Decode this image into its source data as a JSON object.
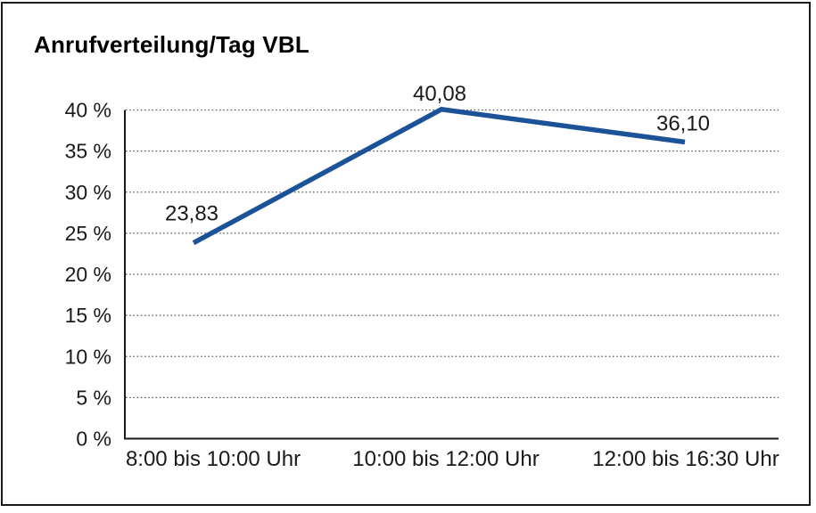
{
  "chart_data": {
    "type": "line",
    "title": "Anrufverteilung/Tag VBL",
    "categories": [
      "8:00 bis 10:00 Uhr",
      "10:00 bis 12:00 Uhr",
      "12:00 bis 16:30 Uhr"
    ],
    "values": [
      23.83,
      40.08,
      36.1
    ],
    "value_labels": [
      "23,83",
      "40,08",
      "36,10"
    ],
    "ylim": [
      0,
      40
    ],
    "ytick_values": [
      0,
      5,
      10,
      15,
      20,
      25,
      30,
      35,
      40
    ],
    "ytick_labels": [
      "0 %",
      "5 %",
      "10 %",
      "15 %",
      "20 %",
      "25 %",
      "30 %",
      "35 %",
      "40 %"
    ],
    "xlabel": "",
    "ylabel": "",
    "grid": "horizontal-dotted",
    "legend": "none",
    "colors": {
      "line": "#1b5298",
      "grid": "#595959",
      "axis": "#1a1a1a",
      "text": "#1a1a1a",
      "background": "#ffffff",
      "border": "#1a1a1a"
    }
  }
}
